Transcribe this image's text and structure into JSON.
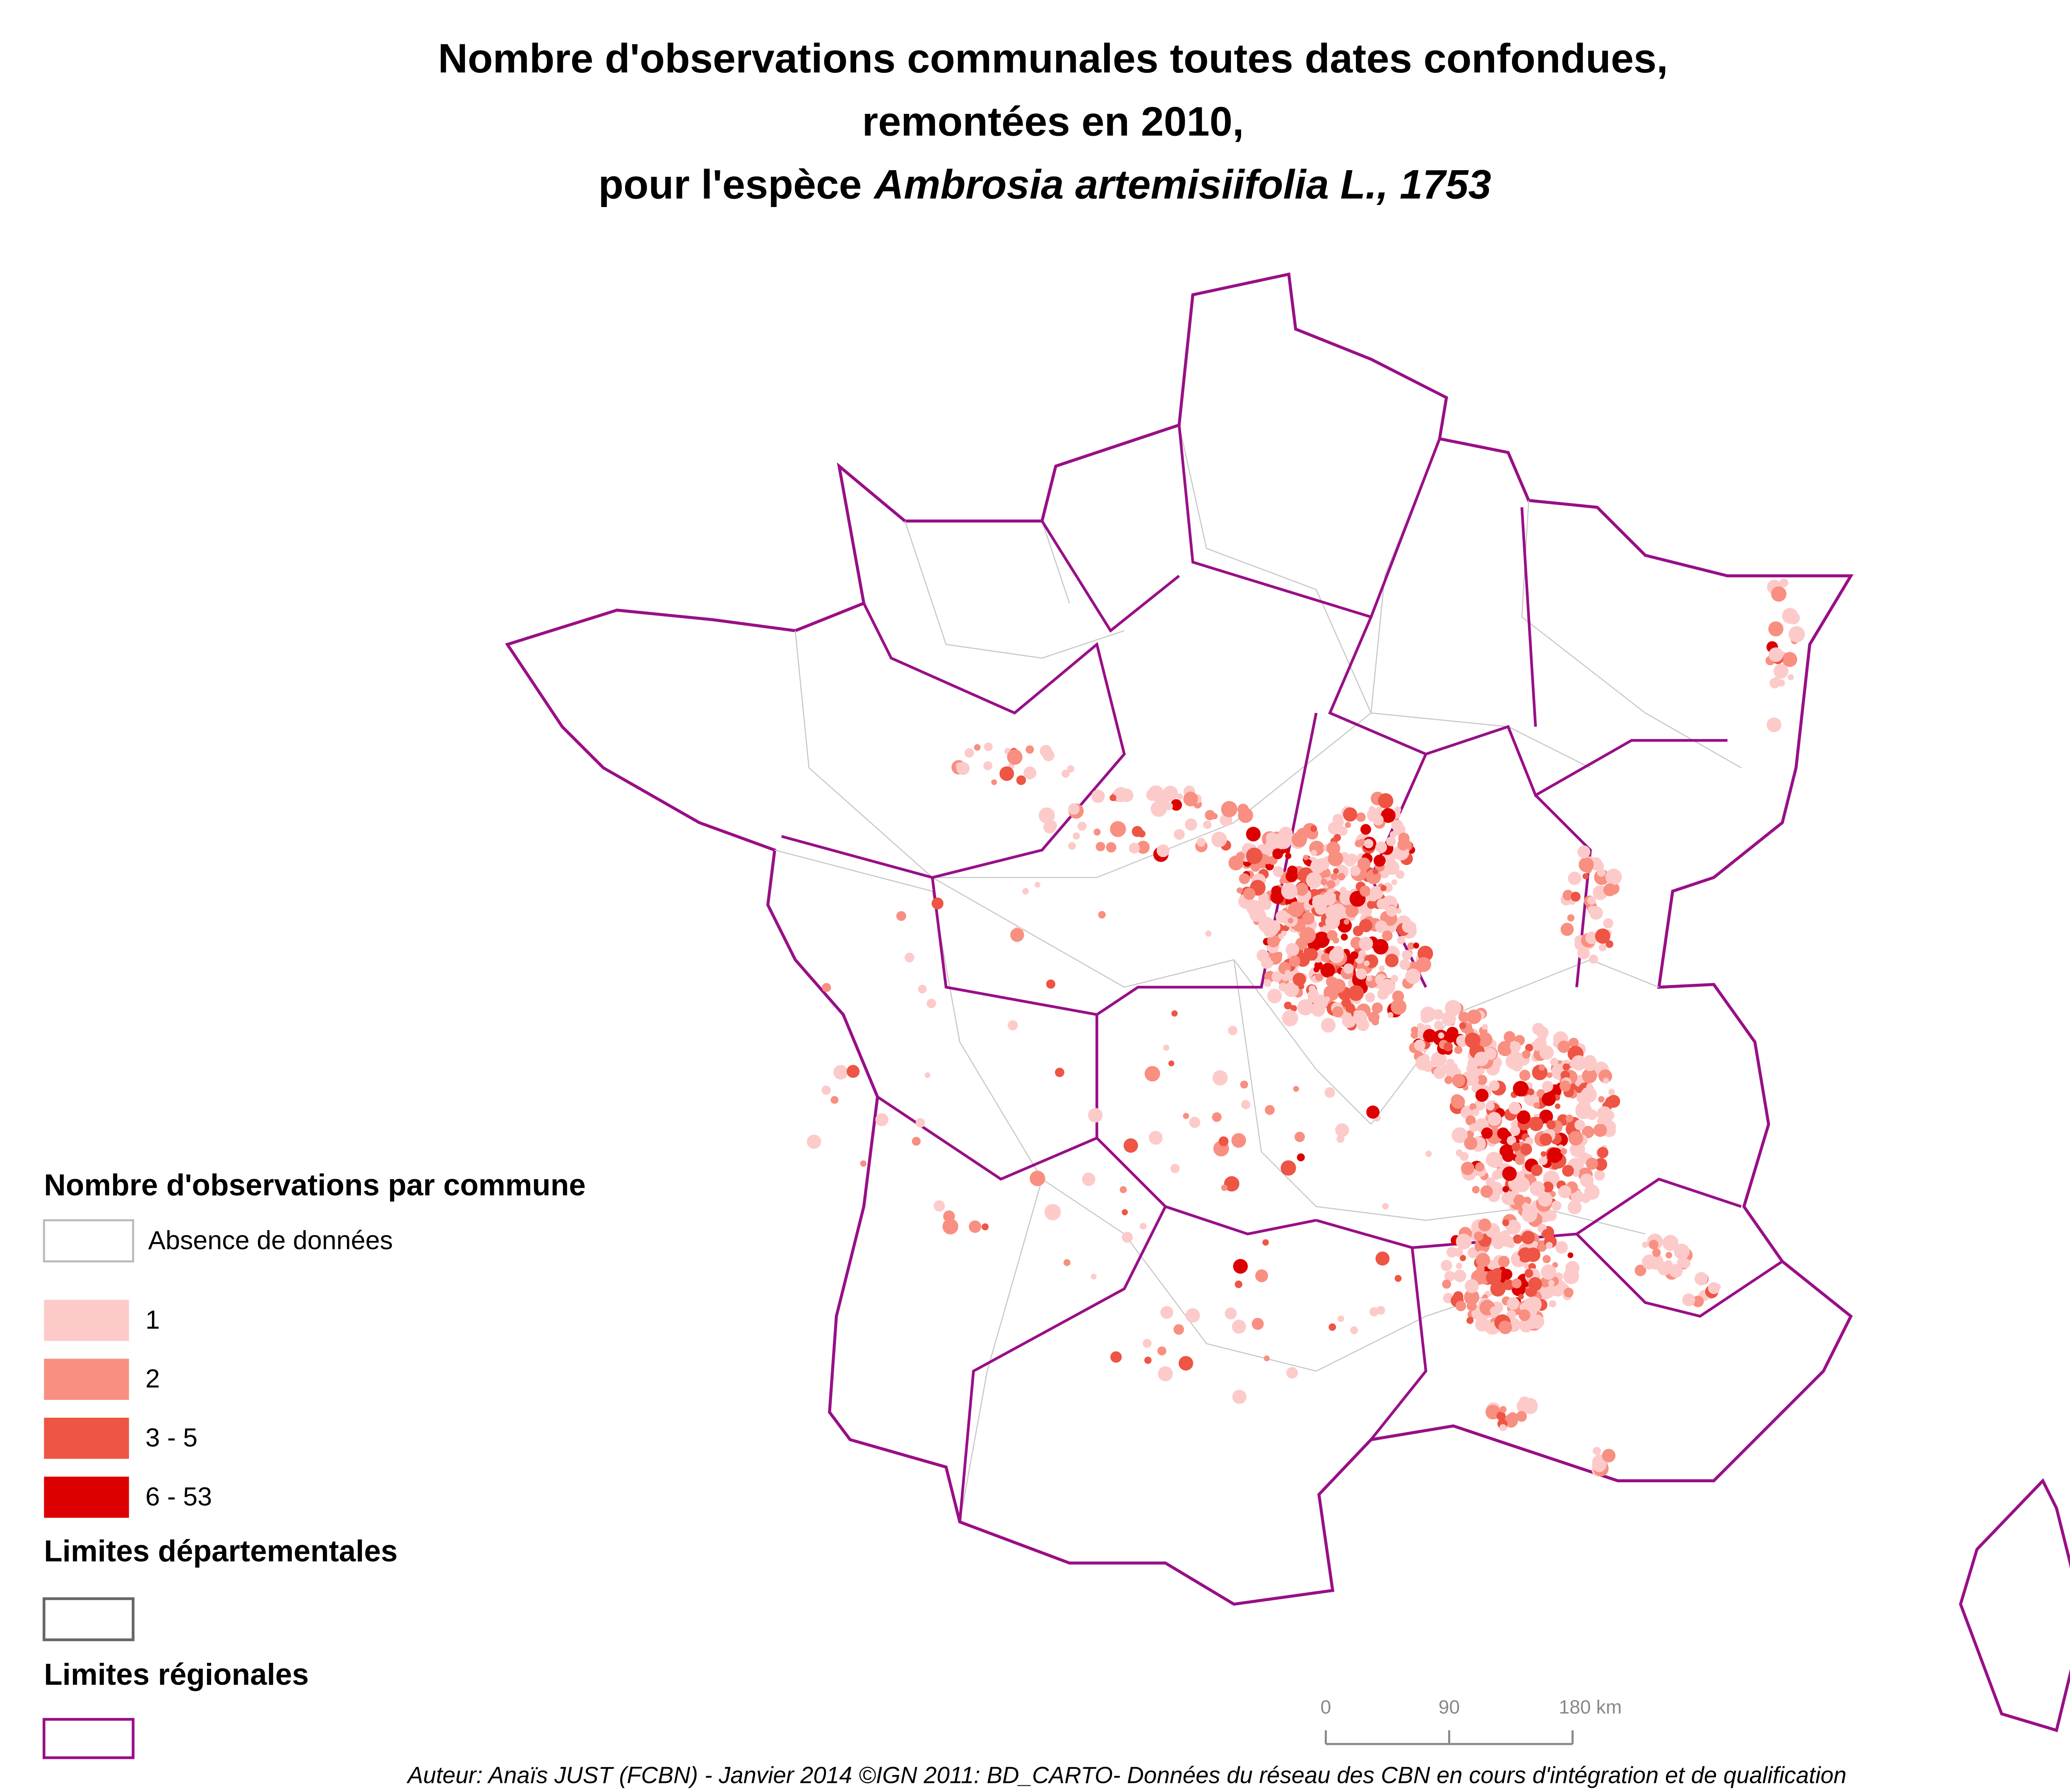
{
  "title": {
    "line1": "Nombre d'observations communales toutes dates confondues,",
    "line2": "remontées en 2010,",
    "line3": "pour l'espèce",
    "species": "Ambrosia artemisiifolia L., 1753"
  },
  "legend": {
    "title": "Nombre d'observations par commune",
    "classes": [
      {
        "label": "Absence de données",
        "color": "#ffffff"
      },
      {
        "label": "1",
        "color": "#fdcaca"
      },
      {
        "label": "2",
        "color": "#f88f80"
      },
      {
        "label": "3 - 5",
        "color": "#ee5544"
      },
      {
        "label": "6 - 53",
        "color": "#dd0000"
      }
    ],
    "departmental_limits": {
      "label": "Limites départementales",
      "color": "#666666"
    },
    "regional_limits": {
      "label": "Limites régionales",
      "color": "#990f87"
    }
  },
  "scale_bar": {
    "ticks": [
      0,
      90,
      {
        "value": 180,
        "label": "180 km"
      }
    ]
  },
  "credit": "Auteur: Anaïs JUST (FCBN) - Janvier 2014 ©IGN 2011: BD_CARTO- Données du réseau des CBN en cours d'intégration et de qualification"
}
